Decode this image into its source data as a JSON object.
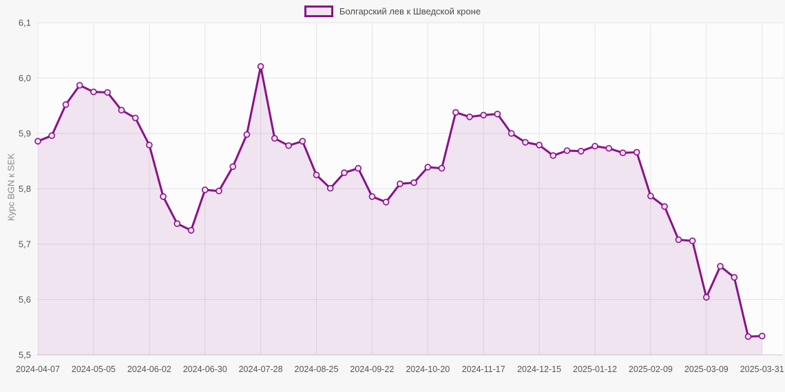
{
  "legend": {
    "position": "top-center"
  },
  "colors": {
    "line": "#8a118a",
    "area_fill": "rgba(138,17,138,0.10)",
    "marker_fill": "#f1e3f1",
    "grid": "#e4e4e4",
    "baseline": "#c9c9c9",
    "tick_text": "#555555",
    "axis_title_text": "#888888",
    "legend_text": "#4a4a52",
    "plot_bg": "#fcfcfc",
    "page_bg": "#f7f7f7"
  },
  "chart_data": {
    "type": "area",
    "title": "",
    "series_name": "Болгарский лев к Шведской кроне",
    "xlabel": "",
    "ylabel": "Курс BGN к SEK",
    "ylim": [
      5.5,
      6.1
    ],
    "y_tick_step": 0.1,
    "y_ticks": [
      "6,1",
      "6,0",
      "5,9",
      "5,8",
      "5,7",
      "5,6",
      "5,5"
    ],
    "grid": true,
    "legend_position": "top-center",
    "tick_every": 4,
    "x_tick_labels": [
      "2024-04-07",
      "2024-05-05",
      "2024-06-02",
      "2024-06-30",
      "2024-07-28",
      "2024-08-25",
      "2024-09-22",
      "2024-10-20",
      "2024-11-17",
      "2024-12-15",
      "2025-01-12",
      "2025-02-09",
      "2025-03-09",
      "2025-03-31"
    ],
    "values": [
      5.886,
      5.896,
      5.952,
      5.987,
      5.975,
      5.974,
      5.942,
      5.928,
      5.879,
      5.786,
      5.737,
      5.725,
      5.798,
      5.796,
      5.84,
      5.898,
      6.021,
      5.891,
      5.878,
      5.886,
      5.825,
      5.801,
      5.829,
      5.837,
      5.786,
      5.776,
      5.809,
      5.811,
      5.839,
      5.837,
      5.938,
      5.93,
      5.933,
      5.935,
      5.9,
      5.884,
      5.879,
      5.86,
      5.869,
      5.868,
      5.877,
      5.873,
      5.865,
      5.866,
      5.787,
      5.768,
      5.708,
      5.706,
      5.604,
      5.66,
      5.64,
      5.533,
      5.534
    ]
  }
}
